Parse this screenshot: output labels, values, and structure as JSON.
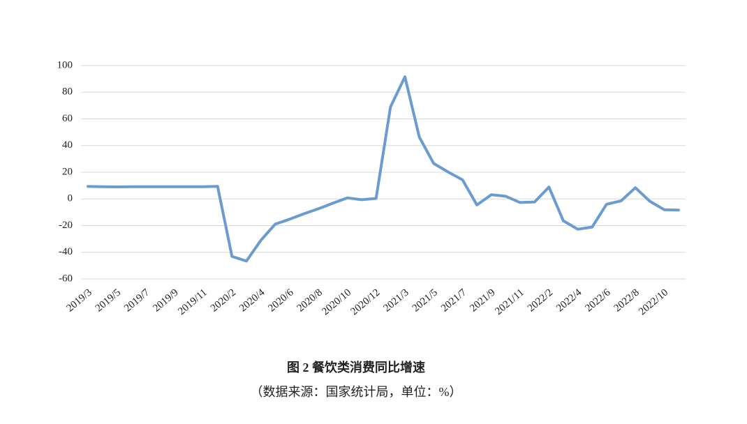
{
  "chart_data": {
    "type": "line",
    "title": "图 2  餐饮类消费同比增速",
    "subtitle": "（数据来源：国家统计局，单位：%）",
    "categories": [
      "2019/3",
      null,
      "2019/5",
      null,
      "2019/7",
      null,
      "2019/9",
      null,
      "2019/11",
      null,
      "2020/2",
      null,
      "2020/4",
      null,
      "2020/6",
      null,
      "2020/8",
      null,
      "2020/10",
      null,
      "2020/12",
      null,
      "2021/3",
      null,
      "2021/5",
      null,
      "2021/7",
      null,
      "2021/9",
      null,
      "2021/11",
      null,
      "2022/2",
      null,
      "2022/4",
      null,
      "2022/6",
      null,
      "2022/8",
      null,
      "2022/10",
      null
    ],
    "values": [
      9.4,
      9.1,
      9.0,
      9.1,
      9.2,
      9.2,
      9.2,
      9.2,
      9.2,
      9.4,
      -43.1,
      -46.6,
      -31.1,
      -18.9,
      -15.2,
      -11.1,
      -7.4,
      -3.2,
      0.8,
      -0.6,
      0.4,
      68.9,
      91.6,
      46.4,
      26.6,
      20.2,
      14.3,
      -4.5,
      3.1,
      2.0,
      -2.7,
      -2.3,
      8.9,
      -16.4,
      -22.7,
      -21.1,
      -4.0,
      -1.5,
      8.4,
      -1.7,
      -8.1,
      -8.4
    ],
    "color": "#6a9bd1",
    "ylim": [
      -60,
      100
    ],
    "yticks": [
      -60,
      -40,
      -20,
      0,
      20,
      40,
      60,
      80,
      100
    ],
    "grid": true
  }
}
